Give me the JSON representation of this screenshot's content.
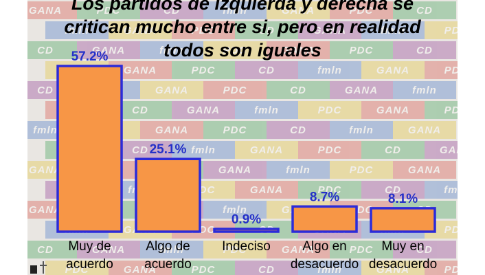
{
  "title_lines": [
    "Los partidos de izquierda y derecha se",
    "critican mucho entre si, pero en realidad",
    "todos son iguales"
  ],
  "background": {
    "logos": [
      "GANA",
      "PDC",
      "CD",
      "fmln",
      "GANA",
      "PDC",
      "CD",
      "GANA",
      "fmln",
      "PDC"
    ],
    "colors": [
      "#d8433b",
      "#3b6fc7",
      "#2e9a4a",
      "#e3c22b",
      "#8b2f8f"
    ]
  },
  "colors": {
    "bar_fill": "#f79646",
    "bar_border": "#2b2bd9",
    "value_label": "#2430c8"
  },
  "chart_data": {
    "type": "bar",
    "title": "Los partidos de izquierda y derecha se critican mucho entre si, pero en realidad todos son iguales",
    "categories": [
      [
        "Muy de",
        "acuerdo"
      ],
      [
        "Algo de",
        "acuerdo"
      ],
      [
        "Indeciso"
      ],
      [
        "Algo en",
        "desacuerdo"
      ],
      [
        "Muy en",
        "desacuerdo"
      ]
    ],
    "values": [
      57.2,
      25.1,
      0.9,
      8.7,
      8.1
    ],
    "value_labels": [
      "57.2%",
      "25.1%",
      "0.9%",
      "8.7%",
      "8.1%"
    ],
    "ylim": [
      0,
      60
    ],
    "grid": false,
    "xlabel": "",
    "ylabel": ""
  }
}
